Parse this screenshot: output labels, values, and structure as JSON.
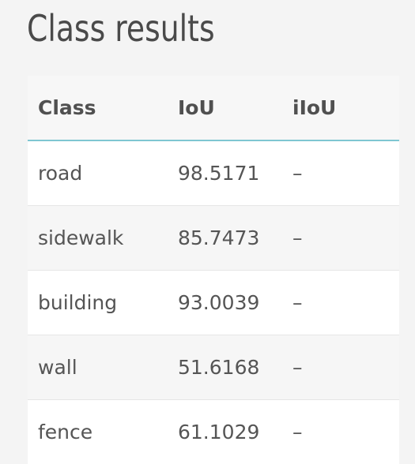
{
  "page": {
    "title": "Class results"
  },
  "table": {
    "headers": {
      "class": "Class",
      "iou": "IoU",
      "iiou": "iIoU"
    },
    "rows": [
      {
        "class": "road",
        "iou": "98.5171",
        "iiou": "–"
      },
      {
        "class": "sidewalk",
        "iou": "85.7473",
        "iiou": "–"
      },
      {
        "class": "building",
        "iou": "93.0039",
        "iiou": "–"
      },
      {
        "class": "wall",
        "iou": "51.6168",
        "iiou": "–"
      },
      {
        "class": "fence",
        "iou": "61.1029",
        "iiou": "–"
      }
    ]
  },
  "colors": {
    "header_rule": "#7fc6d2",
    "background": "#f4f4f4",
    "text": "#555555"
  }
}
